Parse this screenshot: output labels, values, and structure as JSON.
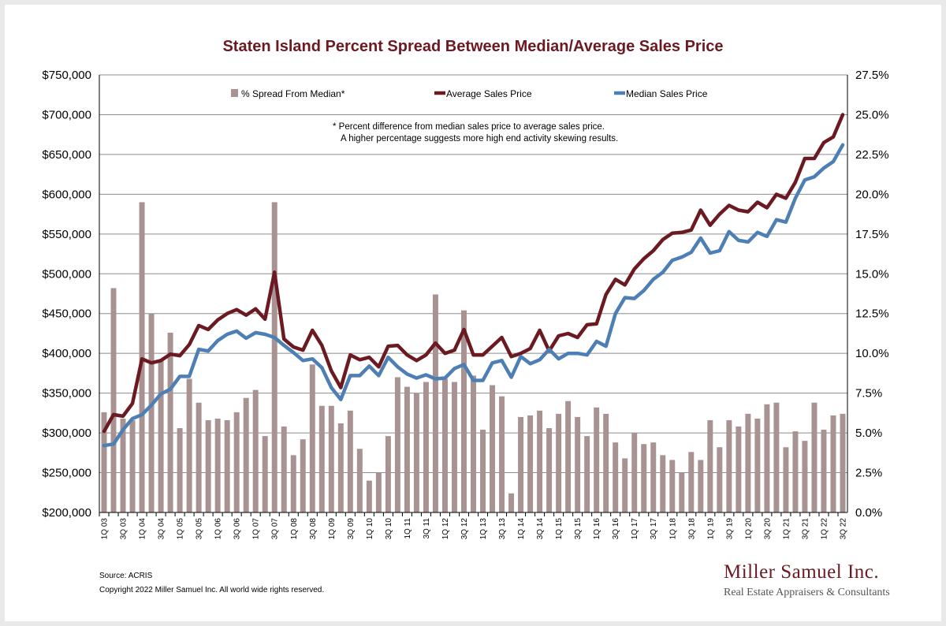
{
  "chart_data": {
    "type": "bar+line",
    "title": "Staten Island Percent Spread Between Median/Average Sales Price",
    "note_line1": "*  Percent difference from median sales price to average sales price.",
    "note_line2": "A higher percentage suggests more high end activity skewing results.",
    "x": [
      "1Q 03",
      "2Q 03",
      "3Q 03",
      "4Q 03",
      "1Q 04",
      "2Q 04",
      "3Q 04",
      "4Q 04",
      "1Q 05",
      "2Q 05",
      "3Q 05",
      "4Q 05",
      "1Q 06",
      "2Q 06",
      "3Q 06",
      "4Q 06",
      "1Q 07",
      "2Q 07",
      "3Q 07",
      "4Q 07",
      "1Q 08",
      "2Q 08",
      "3Q 08",
      "4Q 08",
      "1Q 09",
      "2Q 09",
      "3Q 09",
      "4Q 09",
      "1Q 10",
      "2Q 10",
      "3Q 10",
      "4Q 10",
      "1Q 11",
      "2Q 11",
      "3Q 11",
      "4Q 11",
      "1Q 12",
      "2Q 12",
      "3Q 12",
      "4Q 12",
      "1Q 13",
      "2Q 13",
      "3Q 13",
      "4Q 13",
      "1Q 14",
      "2Q 14",
      "3Q 14",
      "4Q 14",
      "1Q 15",
      "2Q 15",
      "3Q 15",
      "4Q 15",
      "1Q 16",
      "2Q 16",
      "3Q 16",
      "4Q 16",
      "1Q 17",
      "2Q 17",
      "3Q 17",
      "4Q 17",
      "1Q 18",
      "2Q 18",
      "3Q 18",
      "4Q 18",
      "1Q 19",
      "2Q 19",
      "3Q 19",
      "4Q 19",
      "1Q 20",
      "2Q 20",
      "3Q 20",
      "4Q 20",
      "1Q 21",
      "2Q 21",
      "3Q 21",
      "4Q 21",
      "1Q 22",
      "2Q 22",
      "3Q 22"
    ],
    "x_tick_labels": [
      "1Q 03",
      "3Q 03",
      "1Q 04",
      "3Q 04",
      "1Q 05",
      "3Q 05",
      "1Q 06",
      "3Q 06",
      "1Q 07",
      "3Q 07",
      "1Q 08",
      "3Q 08",
      "1Q 09",
      "3Q 09",
      "1Q 10",
      "3Q 10",
      "1Q 11",
      "3Q 11",
      "1Q 12",
      "3Q 12",
      "1Q 13",
      "3Q 13",
      "1Q 14",
      "3Q 14",
      "1Q 15",
      "3Q 15",
      "1Q 16",
      "3Q 16",
      "1Q 17",
      "3Q 17",
      "1Q 18",
      "3Q 18",
      "1Q 19",
      "3Q 19",
      "1Q 20",
      "3Q 20",
      "1Q 21",
      "3Q 21",
      "1Q 22",
      "3Q 22"
    ],
    "series": [
      {
        "name": "% Spread From Median*",
        "kind": "bar",
        "axis": "right",
        "color": "#a89392",
        "values": [
          6.3,
          14.1,
          5.9,
          5.8,
          19.5,
          12.5,
          9.6,
          11.3,
          5.3,
          8.4,
          6.9,
          5.8,
          5.9,
          5.8,
          6.3,
          7.2,
          7.7,
          4.8,
          19.5,
          5.4,
          3.6,
          4.6,
          9.3,
          6.7,
          6.7,
          5.6,
          6.4,
          4.0,
          2.0,
          2.5,
          4.8,
          8.5,
          7.9,
          7.5,
          8.2,
          13.7,
          8.4,
          8.2,
          12.7,
          8.6,
          5.2,
          8.0,
          7.3,
          1.2,
          6.0,
          6.1,
          6.4,
          5.3,
          6.2,
          7.0,
          6.0,
          4.8,
          6.6,
          6.2,
          4.4,
          3.4,
          5.0,
          4.3,
          4.4,
          3.6,
          3.3,
          2.5,
          3.8,
          3.3,
          5.8,
          4.1,
          5.8,
          5.4,
          6.2,
          5.9,
          6.8,
          6.9,
          4.1,
          5.1,
          4.5,
          6.9,
          5.2,
          6.1,
          6.2
        ]
      },
      {
        "name": "Average Sales Price",
        "kind": "line",
        "axis": "left",
        "color": "#6b1a22",
        "values": [
          302000,
          323000,
          321000,
          337000,
          393000,
          388000,
          391000,
          399000,
          397000,
          411000,
          435000,
          430000,
          442000,
          450000,
          455000,
          448000,
          456000,
          443000,
          502000,
          418000,
          408000,
          404000,
          429000,
          410000,
          378000,
          357000,
          398000,
          392000,
          395000,
          383000,
          409000,
          410000,
          398000,
          391000,
          398000,
          413000,
          400000,
          404000,
          430000,
          398000,
          398000,
          409000,
          420000,
          396000,
          400000,
          406000,
          429000,
          403000,
          422000,
          425000,
          420000,
          436000,
          437000,
          474000,
          493000,
          486000,
          506000,
          519000,
          529000,
          543000,
          551000,
          552000,
          555000,
          580000,
          561000,
          575000,
          586000,
          580000,
          578000,
          590000,
          583000,
          600000,
          595000,
          615000,
          645000,
          645000,
          665000,
          672000,
          700000
        ]
      },
      {
        "name": "Median Sales Price",
        "kind": "line",
        "axis": "left",
        "color": "#4d7fb4",
        "values": [
          284000,
          286000,
          304000,
          318000,
          323000,
          335000,
          349000,
          355000,
          371000,
          371000,
          405000,
          403000,
          416000,
          424000,
          428000,
          419000,
          426000,
          424000,
          420000,
          410000,
          401000,
          391000,
          393000,
          382000,
          357000,
          342000,
          372000,
          372000,
          384000,
          372000,
          395000,
          383000,
          374000,
          369000,
          373000,
          368000,
          369000,
          381000,
          386000,
          366000,
          366000,
          388000,
          391000,
          370000,
          396000,
          387000,
          392000,
          405000,
          393000,
          400000,
          400000,
          398000,
          415000,
          409000,
          450000,
          470000,
          469000,
          479000,
          493000,
          502000,
          517000,
          521000,
          527000,
          545000,
          526000,
          529000,
          553000,
          542000,
          540000,
          552000,
          547000,
          568000,
          565000,
          595000,
          618000,
          622000,
          633000,
          641000,
          662000
        ]
      }
    ],
    "y_left": {
      "min": 200000,
      "max": 750000,
      "tick_labels": [
        "$200,000",
        "$250,000",
        "$300,000",
        "$350,000",
        "$400,000",
        "$450,000",
        "$500,000",
        "$550,000",
        "$600,000",
        "$650,000",
        "$700,000",
        "$750,000"
      ]
    },
    "y_right": {
      "min": 0,
      "max": 27.5,
      "tick_labels": [
        "0.0%",
        "2.5%",
        "5.0%",
        "7.5%",
        "10.0%",
        "12.5%",
        "15.0%",
        "17.5%",
        "20.0%",
        "22.5%",
        "25.0%",
        "27.5%"
      ]
    },
    "grid": "horizontal",
    "legend_position": "top"
  },
  "footer": {
    "source": "Source: ACRIS",
    "copyright": "Copyright 2022 Miller Samuel Inc.  All world wide rights reserved."
  },
  "logo": {
    "name": "Miller Samuel Inc.",
    "tagline": "Real Estate Appraisers & Consultants"
  }
}
